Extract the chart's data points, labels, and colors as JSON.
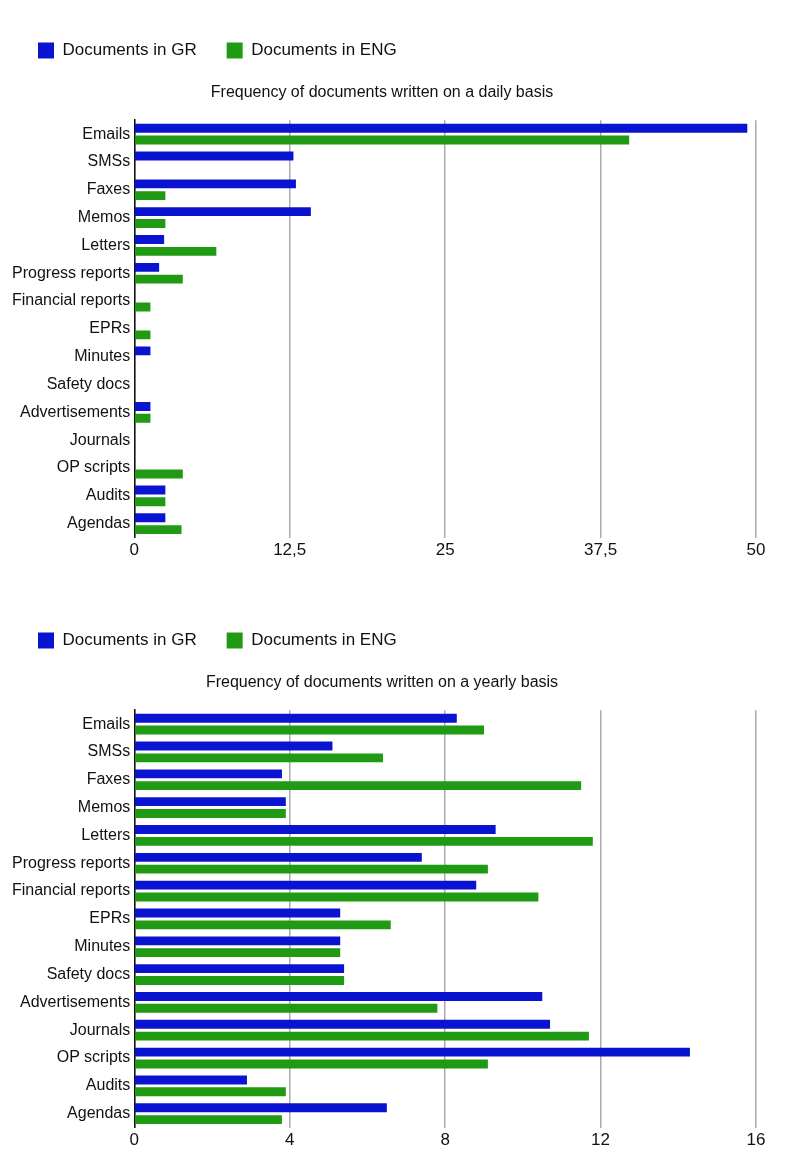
{
  "chart_data": [
    {
      "type": "bar",
      "orientation": "horizontal",
      "title": "Frequency of documents written on a daily basis",
      "categories": [
        "Emails",
        "SMSs",
        "Faxes",
        "Memos",
        "Letters",
        "Progress reports",
        "Financial reports",
        "EPRs",
        "Minutes",
        "Safety docs",
        "Advertisements",
        "Journals",
        "OP scripts",
        "Audits",
        "Agendas"
      ],
      "series": [
        {
          "name": "Documents in GR",
          "color": "#0a14d0",
          "values": [
            49.3,
            12.8,
            13.0,
            14.2,
            2.4,
            2.0,
            0,
            0,
            1.3,
            0,
            1.3,
            0,
            0,
            2.5,
            2.5
          ]
        },
        {
          "name": "Documents in ENG",
          "color": "#1f9a12",
          "values": [
            39.8,
            0,
            2.5,
            2.5,
            6.6,
            3.9,
            1.3,
            1.3,
            0,
            0,
            1.3,
            0,
            3.9,
            2.5,
            3.8
          ]
        }
      ],
      "xlim": [
        0,
        50
      ],
      "xticks": [
        0,
        {
          "value": 12.5,
          "label": "12,5"
        },
        25,
        {
          "value": 37.5,
          "label": "37,5"
        },
        50
      ],
      "grid": "x",
      "legend": "top"
    },
    {
      "type": "bar",
      "orientation": "horizontal",
      "title": "Frequency of documents written on a yearly basis",
      "categories": [
        "Emails",
        "SMSs",
        "Faxes",
        "Memos",
        "Letters",
        "Progress reports",
        "Financial reports",
        "EPRs",
        "Minutes",
        "Safety docs",
        "Advertisements",
        "Journals",
        "OP scripts",
        "Audits",
        "Agendas"
      ],
      "series": [
        {
          "name": "Documents in GR",
          "color": "#0a14d0",
          "values": [
            8.3,
            5.1,
            3.8,
            3.9,
            9.3,
            7.4,
            8.8,
            5.3,
            5.3,
            5.4,
            10.5,
            10.7,
            14.3,
            2.9,
            6.5
          ]
        },
        {
          "name": "Documents in ENG",
          "color": "#1f9a12",
          "values": [
            9.0,
            6.4,
            11.5,
            3.9,
            11.8,
            9.1,
            10.4,
            6.6,
            5.3,
            5.4,
            7.8,
            11.7,
            9.1,
            3.9,
            3.8
          ]
        }
      ],
      "xlim": [
        0,
        16
      ],
      "xticks": [
        0,
        4,
        8,
        12,
        16
      ],
      "grid": "x",
      "legend": "top"
    }
  ]
}
